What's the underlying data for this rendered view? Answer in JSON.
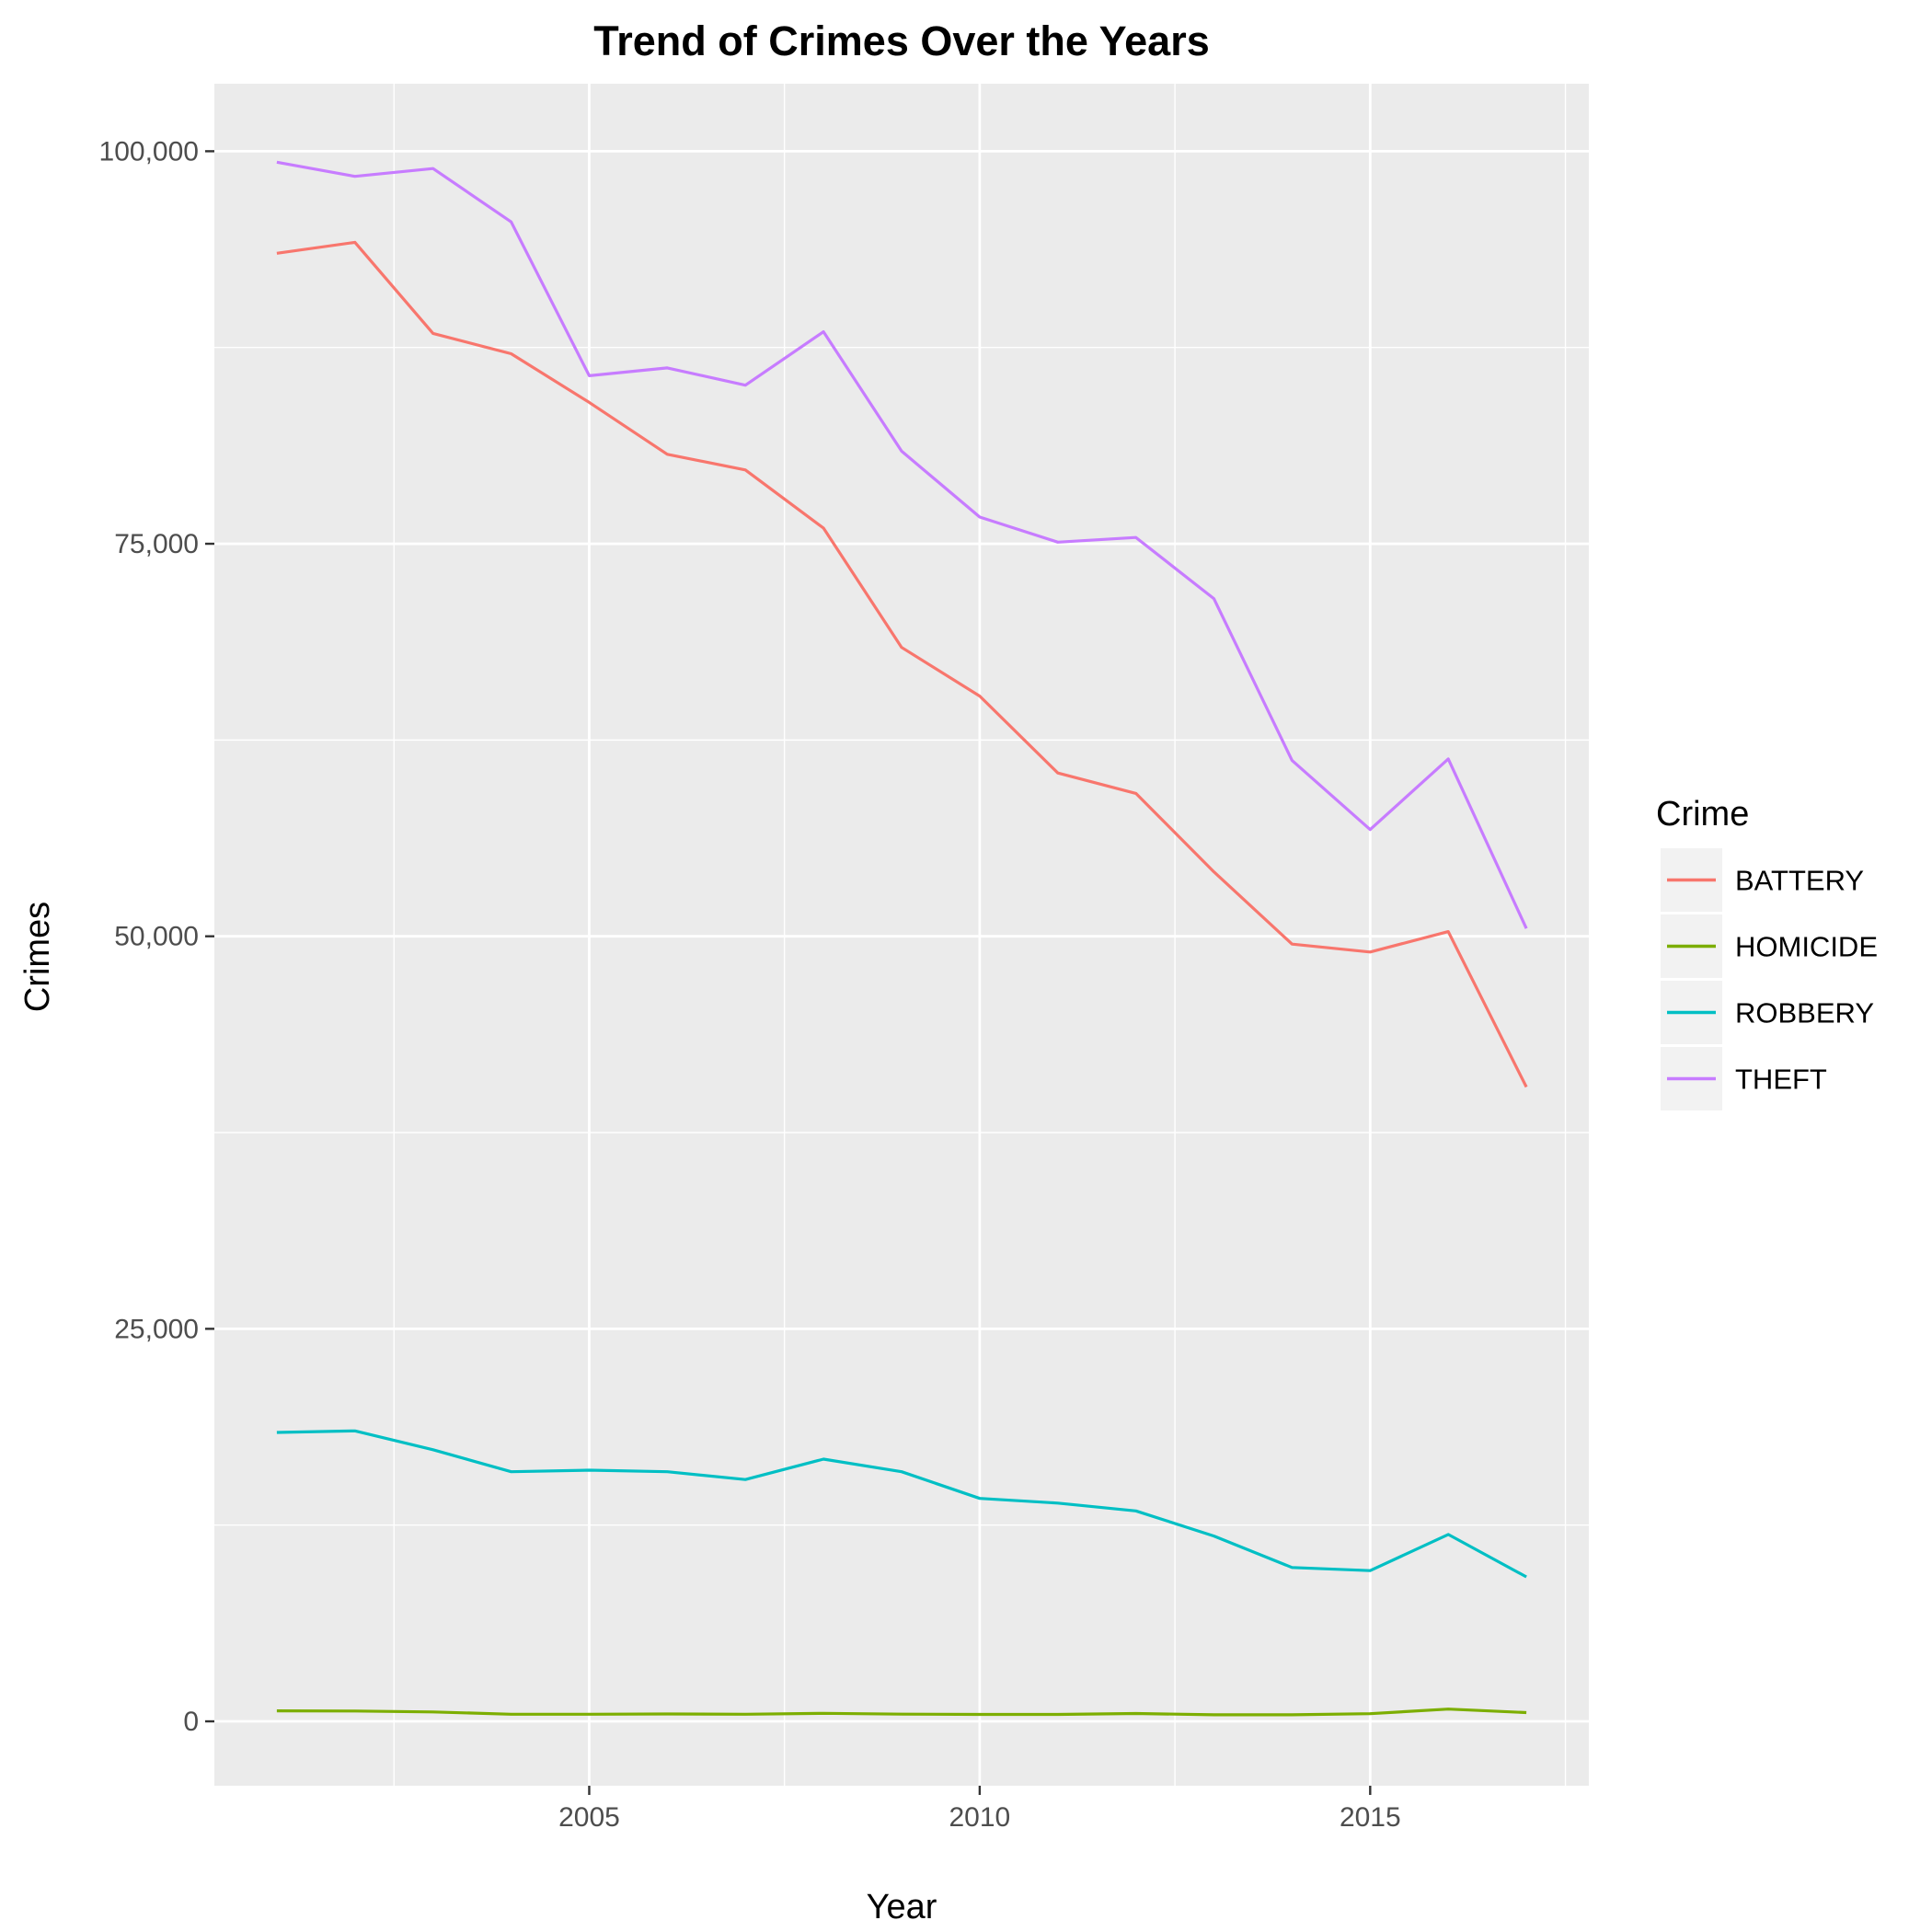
{
  "chart_data": {
    "type": "line",
    "title": "Trend of Crimes Over the Years",
    "xlabel": "Year",
    "ylabel": "Crimes",
    "x": [
      2001,
      2002,
      2003,
      2004,
      2005,
      2006,
      2007,
      2008,
      2009,
      2010,
      2011,
      2012,
      2013,
      2014,
      2015,
      2016,
      2017
    ],
    "xlim": [
      2000.2,
      2017.8
    ],
    "ylim": [
      -4100,
      104300
    ],
    "x_ticks": [
      {
        "value": 2005,
        "label": "2005"
      },
      {
        "value": 2010,
        "label": "2010"
      },
      {
        "value": 2015,
        "label": "2015"
      }
    ],
    "y_ticks": [
      {
        "value": 0,
        "label": "0"
      },
      {
        "value": 25000,
        "label": "25,000"
      },
      {
        "value": 50000,
        "label": "50,000"
      },
      {
        "value": 75000,
        "label": "75,000"
      },
      {
        "value": 100000,
        "label": "100,000"
      }
    ],
    "grid": true,
    "legend_title": "Crime",
    "legend_position": "right",
    "series": [
      {
        "name": "BATTERY",
        "color": "#F8766D",
        "values": [
          93500,
          94200,
          88400,
          87100,
          84000,
          80700,
          79700,
          76000,
          68400,
          65300,
          60400,
          59100,
          54100,
          49500,
          49000,
          50300,
          40400
        ]
      },
      {
        "name": "HOMICIDE",
        "color": "#7CAE00",
        "values": [
          670,
          660,
          600,
          450,
          450,
          470,
          450,
          510,
          460,
          440,
          440,
          500,
          420,
          420,
          490,
          780,
          560
        ]
      },
      {
        "name": "ROBBERY",
        "color": "#00BFC4",
        "values": [
          18400,
          18500,
          17300,
          15900,
          16000,
          15900,
          15400,
          16700,
          15900,
          14200,
          13900,
          13400,
          11800,
          9800,
          9600,
          11900,
          9200
        ]
      },
      {
        "name": "THEFT",
        "color": "#C77CFF",
        "values": [
          99300,
          98400,
          98900,
          95500,
          85700,
          86200,
          85100,
          88500,
          80900,
          76700,
          75100,
          75400,
          71500,
          61200,
          56800,
          61300,
          50500
        ]
      }
    ]
  }
}
